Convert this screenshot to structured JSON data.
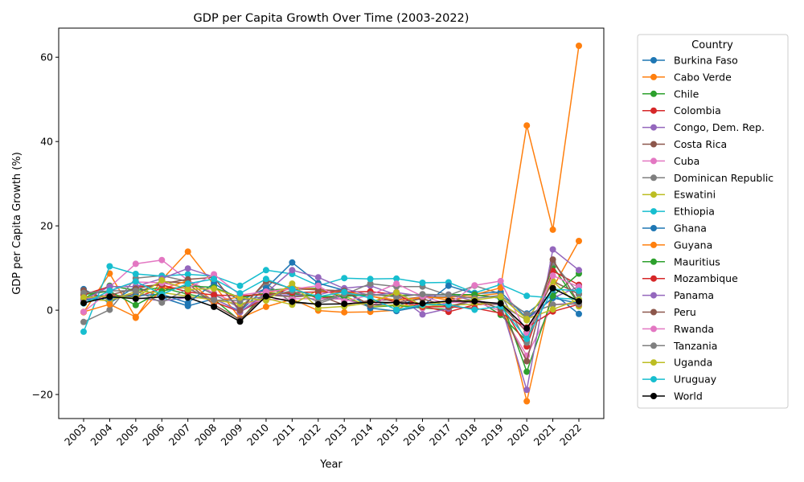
{
  "chart_data": {
    "type": "line",
    "title": "GDP per Capita Growth Over Time (2003-2022)",
    "xlabel": "Year",
    "ylabel": "GDP per Capita Growth (%)",
    "x": [
      "2003",
      "2004",
      "2005",
      "2006",
      "2007",
      "2008",
      "2009",
      "2010",
      "2011",
      "2012",
      "2013",
      "2014",
      "2015",
      "2016",
      "2017",
      "2018",
      "2019",
      "2020",
      "2021",
      "2022"
    ],
    "ylim": [
      -25.7,
      66.9
    ],
    "yticks": [
      -20,
      0,
      20,
      40,
      60
    ],
    "grid": false,
    "legend": {
      "title": "Country",
      "placement": "outside-right"
    },
    "series": [
      {
        "name": "Burkina Faso",
        "color": "#1f77b4",
        "values": [
          5.0,
          1.7,
          5.6,
          3.0,
          1.0,
          2.7,
          -0.2,
          5.4,
          3.6,
          3.3,
          2.7,
          1.3,
          1.0,
          3.0,
          3.2,
          3.7,
          2.8,
          -0.8,
          4.0,
          -0.9
        ]
      },
      {
        "name": "Cabo Verde",
        "color": "#ff7f0e",
        "values": [
          -0.5,
          8.7,
          -1.8,
          7.2,
          13.9,
          6.0,
          -1.9,
          0.8,
          2.6,
          -0.1,
          -0.5,
          -0.4,
          0.0,
          3.4,
          2.4,
          3.3,
          4.0,
          -21.6,
          5.3,
          16.4
        ]
      },
      {
        "name": "Chile",
        "color": "#2ca02c",
        "values": [
          2.8,
          5.8,
          4.7,
          5.3,
          3.8,
          2.6,
          -2.5,
          4.7,
          5.1,
          5.2,
          2.9,
          0.7,
          1.1,
          0.5,
          0.2,
          2.8,
          -1.1,
          -7.4,
          10.4,
          1.4
        ]
      },
      {
        "name": "Colombia",
        "color": "#d62728",
        "values": [
          2.4,
          3.7,
          3.0,
          5.2,
          5.3,
          2.0,
          -0.4,
          3.0,
          5.4,
          2.7,
          3.6,
          3.4,
          1.9,
          0.9,
          -0.4,
          1.3,
          1.5,
          -8.6,
          9.3,
          6.0
        ]
      },
      {
        "name": "Congo, Dem. Rep.",
        "color": "#9467bd",
        "values": [
          2.5,
          3.4,
          3.0,
          2.2,
          3.0,
          2.8,
          -0.4,
          3.6,
          3.6,
          3.6,
          5.2,
          5.8,
          3.6,
          -1.0,
          0.4,
          2.4,
          1.2,
          -2.3,
          2.9,
          5.6
        ]
      },
      {
        "name": "Costa Rica",
        "color": "#8c564b",
        "values": [
          4.7,
          2.4,
          3.9,
          6.8,
          6.4,
          1.3,
          -2.2,
          3.7,
          3.1,
          3.6,
          1.2,
          2.3,
          2.5,
          3.1,
          3.0,
          1.6,
          1.3,
          -5.2,
          6.9,
          3.8
        ]
      },
      {
        "name": "Cuba",
        "color": "#e377c2",
        "values": [
          3.5,
          5.5,
          11.0,
          11.9,
          7.1,
          4.0,
          1.4,
          2.4,
          2.7,
          2.7,
          2.6,
          0.9,
          4.3,
          0.5,
          1.8,
          2.1,
          -0.2,
          -10.8,
          1.3,
          1.8
        ]
      },
      {
        "name": "Dominican Republic",
        "color": "#7f7f7f",
        "values": [
          -2.8,
          0.1,
          7.6,
          8.2,
          6.8,
          3.7,
          0.6,
          6.4,
          1.7,
          1.5,
          3.7,
          6.3,
          5.6,
          5.6,
          3.5,
          5.8,
          3.9,
          -7.7,
          11.3,
          3.9
        ]
      },
      {
        "name": "Eswatini",
        "color": "#bcbd22",
        "values": [
          2.5,
          2.3,
          4.4,
          4.2,
          3.3,
          2.4,
          1.5,
          2.8,
          1.3,
          4.8,
          3.4,
          0.8,
          1.3,
          0.8,
          1.2,
          1.4,
          1.7,
          -2.4,
          6.9,
          0.9
        ]
      },
      {
        "name": "Ethiopia",
        "color": "#17becf",
        "values": [
          -5.1,
          10.4,
          8.6,
          8.1,
          8.5,
          8.1,
          5.8,
          9.5,
          8.6,
          5.8,
          7.6,
          7.4,
          7.5,
          6.5,
          6.6,
          4.1,
          6.1,
          3.4,
          2.9,
          2.6
        ]
      },
      {
        "name": "Ghana",
        "color": "#1f77b4",
        "values": [
          2.4,
          2.9,
          3.4,
          3.8,
          1.7,
          6.4,
          2.2,
          5.2,
          11.3,
          6.4,
          4.7,
          0.5,
          -0.2,
          1.0,
          5.8,
          3.9,
          4.3,
          -1.9,
          2.9,
          1.6
        ]
      },
      {
        "name": "Guyana",
        "color": "#ff7f0e",
        "values": [
          -0.4,
          1.4,
          -1.6,
          5.0,
          7.0,
          2.0,
          3.2,
          4.0,
          5.5,
          4.9,
          4.5,
          3.3,
          2.4,
          3.0,
          3.0,
          3.7,
          5.3,
          43.8,
          19.1,
          62.7
        ]
      },
      {
        "name": "Mauritius",
        "color": "#2ca02c",
        "values": [
          3.7,
          4.5,
          1.2,
          4.5,
          5.8,
          5.4,
          3.0,
          4.0,
          4.0,
          3.2,
          3.3,
          3.6,
          3.5,
          3.7,
          3.7,
          3.7,
          2.9,
          -14.6,
          3.4,
          8.7
        ]
      },
      {
        "name": "Mozambique",
        "color": "#d62728",
        "values": [
          3.7,
          5.6,
          5.6,
          6.0,
          4.3,
          3.6,
          3.4,
          3.7,
          4.2,
          4.3,
          4.3,
          4.4,
          3.7,
          0.8,
          0.8,
          0.5,
          -0.7,
          -4.1,
          -0.3,
          1.4
        ]
      },
      {
        "name": "Panama",
        "color": "#9467bd",
        "values": [
          2.4,
          5.6,
          5.6,
          7.5,
          9.9,
          7.9,
          -0.5,
          4.1,
          9.5,
          7.8,
          5.1,
          3.5,
          4.2,
          3.3,
          3.7,
          2.2,
          1.4,
          -18.9,
          14.4,
          9.5
        ]
      },
      {
        "name": "Peru",
        "color": "#8c564b",
        "values": [
          2.9,
          3.6,
          5.1,
          6.3,
          7.3,
          7.8,
          -0.1,
          7.0,
          5.1,
          4.8,
          4.6,
          1.2,
          1.9,
          2.7,
          0.8,
          2.5,
          0.3,
          -12.1,
          12.0,
          1.6
        ]
      },
      {
        "name": "Rwanda",
        "color": "#e377c2",
        "values": [
          -0.4,
          4.5,
          6.7,
          6.5,
          5.2,
          8.5,
          3.6,
          4.4,
          5.0,
          5.8,
          2.1,
          3.6,
          6.3,
          3.3,
          1.4,
          5.9,
          6.9,
          -5.6,
          8.2,
          5.5
        ]
      },
      {
        "name": "Tanzania",
        "color": "#7f7f7f",
        "values": [
          4.1,
          4.6,
          4.6,
          1.8,
          5.1,
          2.4,
          2.3,
          3.3,
          4.6,
          2.0,
          3.8,
          3.8,
          3.1,
          3.8,
          3.6,
          2.8,
          3.5,
          -1.0,
          1.3,
          1.5
        ]
      },
      {
        "name": "Uganda",
        "color": "#bcbd22",
        "values": [
          3.0,
          3.3,
          2.9,
          7.1,
          4.9,
          5.1,
          3.0,
          2.3,
          6.3,
          0.5,
          0.9,
          1.8,
          4.2,
          1.1,
          2.1,
          2.4,
          3.2,
          -2.1,
          0.2,
          2.5
        ]
      },
      {
        "name": "Uruguay",
        "color": "#17becf",
        "values": [
          1.6,
          4.6,
          6.8,
          3.8,
          6.3,
          7.4,
          4.0,
          7.4,
          5.0,
          3.2,
          4.3,
          2.9,
          0.1,
          1.3,
          1.3,
          0.1,
          0.9,
          -6.8,
          5.0,
          4.6
        ]
      },
      {
        "name": "World",
        "color": "#000000",
        "values": [
          1.7,
          3.2,
          2.7,
          3.1,
          3.0,
          0.8,
          -2.7,
          3.3,
          2.0,
          1.4,
          1.5,
          1.9,
          1.8,
          1.6,
          2.2,
          2.1,
          1.6,
          -4.3,
          5.2,
          2.1
        ]
      }
    ]
  }
}
